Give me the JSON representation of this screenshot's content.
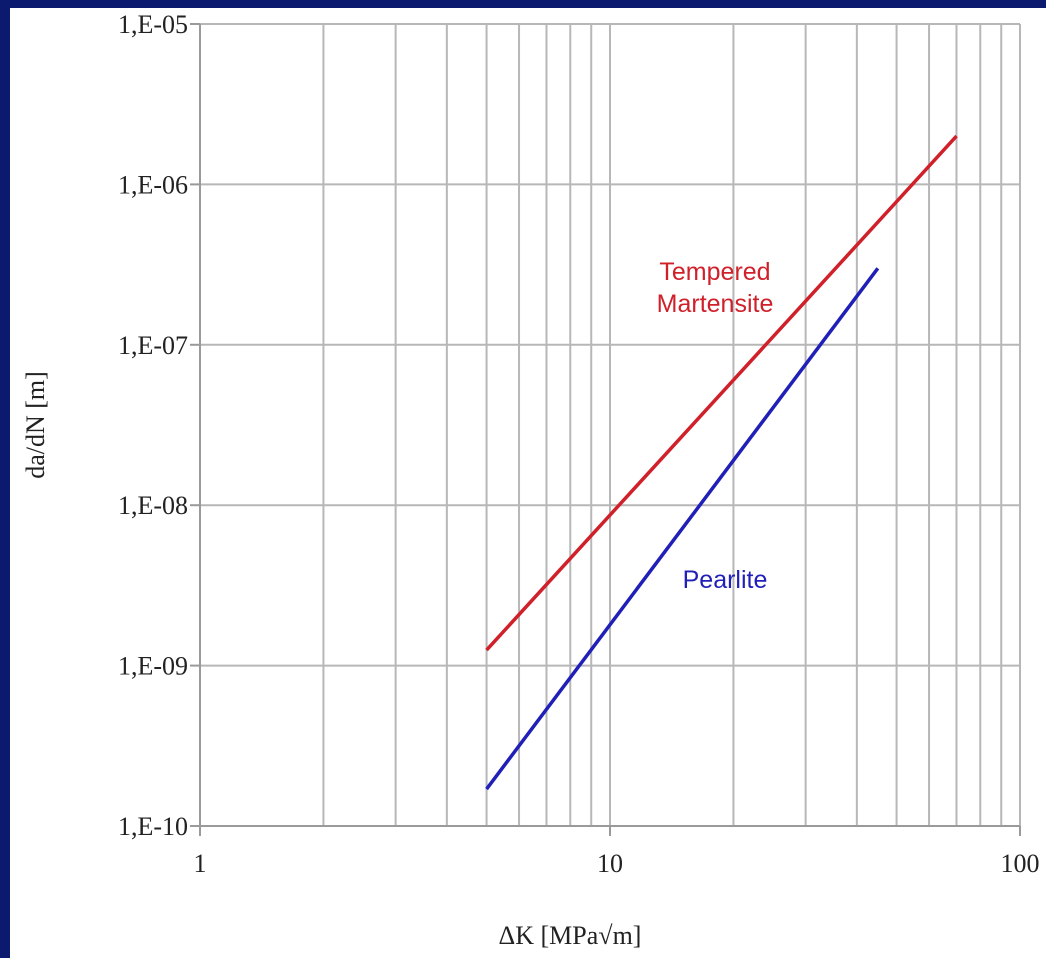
{
  "chart_data": {
    "type": "line",
    "xlabel": "ΔK [MPa√m]",
    "ylabel": "da/dN [m]",
    "x_scale": "log",
    "y_scale": "log",
    "xlim": [
      1,
      100
    ],
    "ylim": [
      1e-10,
      1e-05
    ],
    "grid": true,
    "legend": "none",
    "x_ticks": [
      {
        "value": 1,
        "label": "1"
      },
      {
        "value": 10,
        "label": "10"
      },
      {
        "value": 100,
        "label": "100"
      }
    ],
    "y_ticks": [
      {
        "value": 1e-05,
        "label": "1,E-05"
      },
      {
        "value": 1e-06,
        "label": "1,E-06"
      },
      {
        "value": 1e-07,
        "label": "1,E-07"
      },
      {
        "value": 1e-08,
        "label": "1,E-08"
      },
      {
        "value": 1e-09,
        "label": "1,E-09"
      },
      {
        "value": 1e-10,
        "label": "1,E-10"
      }
    ],
    "series": [
      {
        "name": "Tempered Martensite",
        "label_lines": [
          "Tempered",
          "Martensite"
        ],
        "color": "#d0202a",
        "x": [
          5,
          70
        ],
        "y": [
          1.25e-09,
          2e-06
        ]
      },
      {
        "name": "Pearlite",
        "label_lines": [
          "Pearlite"
        ],
        "color": "#2020b8",
        "x": [
          5,
          45
        ],
        "y": [
          1.7e-10,
          3e-07
        ]
      }
    ]
  }
}
